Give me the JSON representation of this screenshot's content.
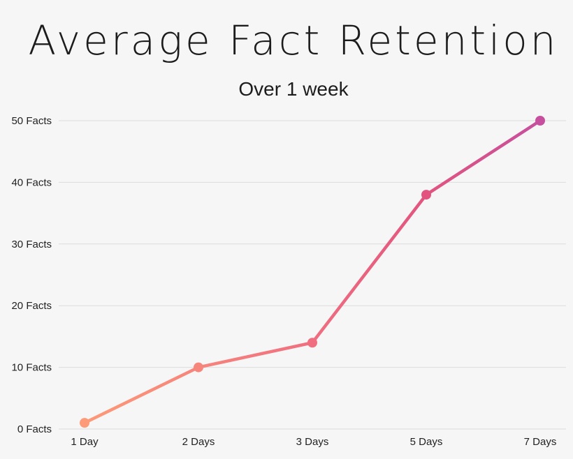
{
  "chart_data": {
    "type": "line",
    "title": "Average Fact Retention",
    "subtitle": "Over 1 week",
    "xlabel": "",
    "ylabel": "",
    "categories": [
      "1 Day",
      "2 Days",
      "3 Days",
      "5 Days",
      "7 Days"
    ],
    "y_tick_labels": [
      "0 Facts",
      "10 Facts",
      "20 Facts",
      "30 Facts",
      "40 Facts",
      "50 Facts"
    ],
    "y_ticks": [
      0,
      10,
      20,
      30,
      40,
      50
    ],
    "ylim": [
      0,
      50
    ],
    "series": [
      {
        "values": [
          1,
          10,
          14,
          38,
          50
        ]
      }
    ],
    "grid": true,
    "legend": "none",
    "colors": {
      "gradient_start": "#fd9a78",
      "gradient_mid": "#ef6f80",
      "gradient_third": "#e2547f",
      "gradient_end": "#c6509e",
      "gridline": "#dcdcdc",
      "background": "#f6f6f6"
    }
  }
}
